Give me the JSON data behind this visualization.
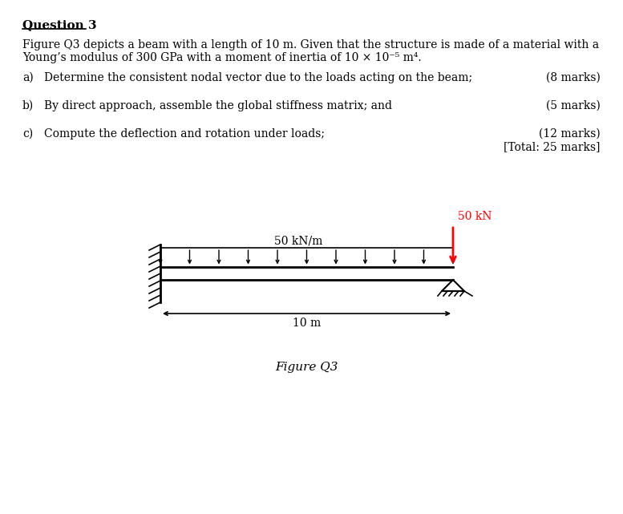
{
  "title": "Question 3",
  "para1_line1": "Figure Q3 depicts a beam with a length of 10 m. Given that the structure is made of a material with a",
  "para1_line2": "Young’s modulus of 300 GPa with a moment of inertia of 10 × 10⁻⁵ m⁴.",
  "qa_label": "a)",
  "qa_text": "Determine the consistent nodal vector due to the loads acting on the beam;",
  "qa_marks": "(8 marks)",
  "qb_label": "b)",
  "qb_text": "By direct approach, assemble the global stiffness matrix; and",
  "qb_marks": "(5 marks)",
  "qc_label": "c)",
  "qc_text": "Compute the deflection and rotation under loads;",
  "qc_marks": "(12 marks)",
  "qc_total": "[Total: 25 marks]",
  "fig_label": "Figure Q3",
  "load_label": "50 kN/m",
  "point_load_label": "50 kN",
  "dim_label": "10 m",
  "beam_color": "#000000",
  "point_load_color": "#cc0000",
  "background_color": "#ffffff"
}
